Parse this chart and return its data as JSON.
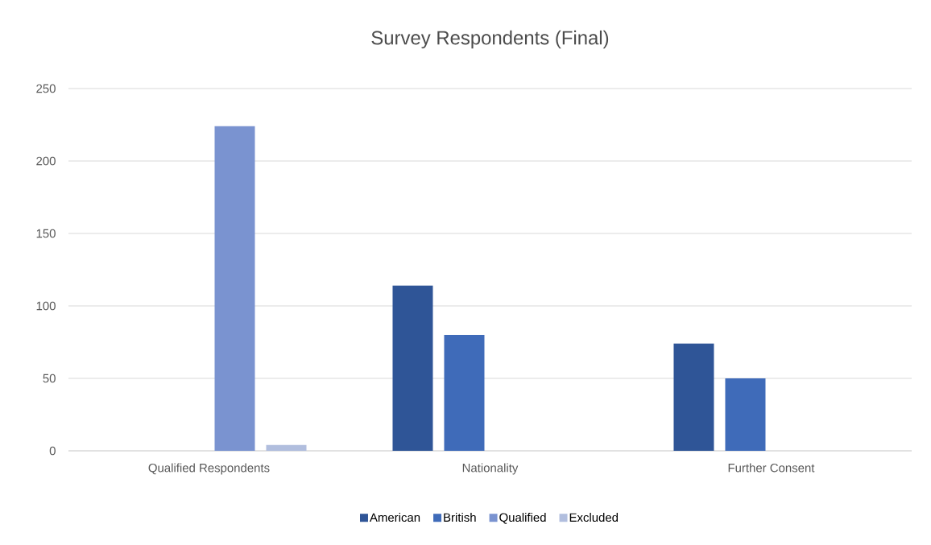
{
  "chart_data": {
    "type": "bar",
    "title": "Survey Respondents (Final)",
    "categories": [
      "Qualified Respondents",
      "Nationality",
      "Further Consent"
    ],
    "series": [
      {
        "name": "American",
        "color": "#2f5597",
        "values": [
          null,
          114,
          74
        ]
      },
      {
        "name": "British",
        "color": "#3f6bb9",
        "values": [
          null,
          80,
          50
        ]
      },
      {
        "name": "Qualified",
        "color": "#7a93d0",
        "values": [
          224,
          null,
          null
        ]
      },
      {
        "name": "Excluded",
        "color": "#b1bede",
        "values": [
          4,
          null,
          null
        ]
      }
    ],
    "ylim": [
      0,
      250
    ],
    "yticks": [
      0,
      50,
      100,
      150,
      200,
      250
    ],
    "grid": "y",
    "legend": "bottom"
  }
}
